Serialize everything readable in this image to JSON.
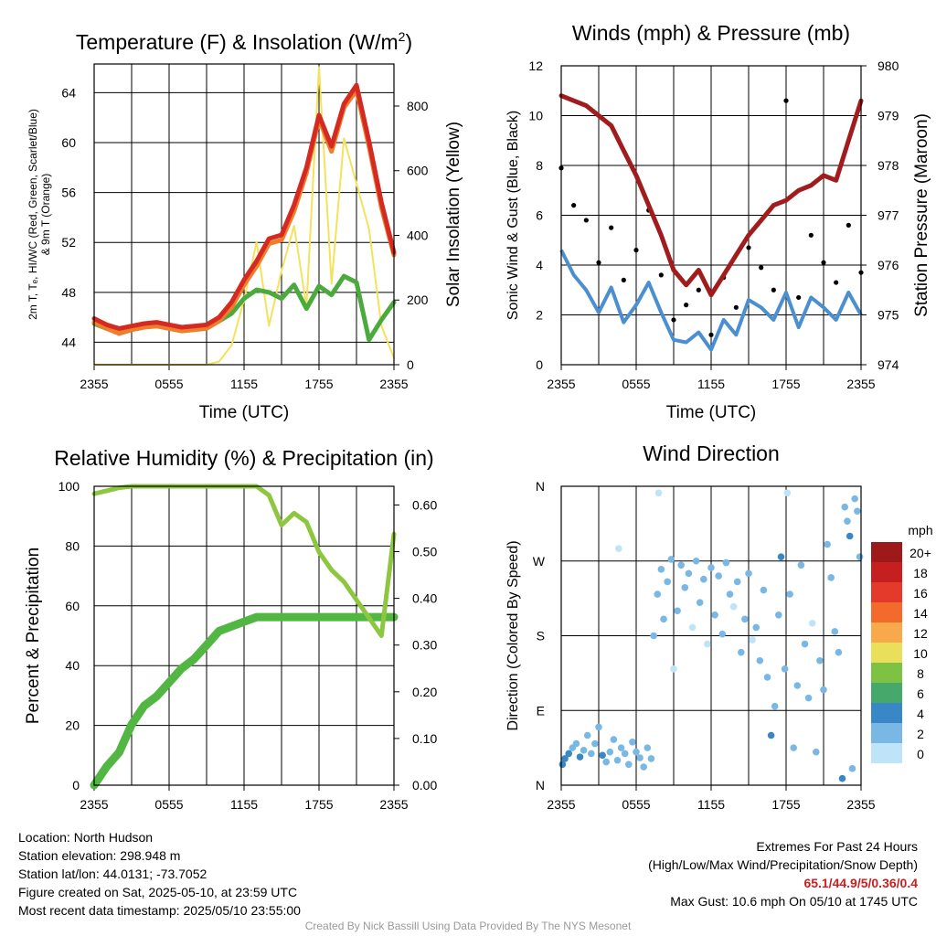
{
  "chart_data": [
    {
      "type": "line",
      "title": "Temperature (F) & Insolation (W/m²)",
      "xlabel": "Time (UTC)",
      "ylabel": "2m T, T_d, HI/WC (Red, Green, Scarlet/Blue) & 9m T (Orange)",
      "ylabel_lines": [
        "2m T, Tₑ, HI/WC (Red, Green, Scarlet/Blue)",
        "& 9m T (Orange)"
      ],
      "y2label": "Solar Insolation (Yellow)",
      "x_ticks": [
        "2355",
        "0555",
        "1155",
        "1755",
        "2355"
      ],
      "y_ticks": [
        "44",
        "48",
        "52",
        "56",
        "60",
        "64"
      ],
      "y2_ticks": [
        "0",
        "200",
        "400",
        "600",
        "800"
      ],
      "ylim": [
        42.2,
        66.3
      ],
      "y2lim": [
        0,
        930
      ],
      "x": [
        0,
        1,
        2,
        3,
        4,
        5,
        6,
        7,
        8,
        9,
        10,
        11,
        12,
        13,
        14,
        15,
        16,
        17,
        18,
        19,
        20,
        21,
        22,
        23,
        24
      ],
      "series": [
        {
          "name": "2m T",
          "color": "#d42a22",
          "axis": "left",
          "values": [
            45.9,
            45.4,
            45.1,
            45.3,
            45.5,
            45.6,
            45.4,
            45.2,
            45.3,
            45.4,
            46.0,
            47.2,
            49.0,
            50.5,
            52.3,
            52.6,
            55.0,
            58.0,
            62.2,
            59.7,
            63.1,
            64.6,
            60.1,
            55.2,
            51.2
          ]
        },
        {
          "name": "9m T",
          "color": "#f07d2b",
          "axis": "left",
          "values": [
            45.6,
            45.1,
            44.7,
            45.0,
            45.2,
            45.3,
            45.1,
            44.9,
            45.0,
            45.1,
            45.7,
            46.8,
            48.6,
            50.1,
            51.9,
            52.2,
            54.5,
            57.6,
            61.9,
            59.3,
            62.8,
            64.2,
            59.7,
            54.8,
            51.0
          ]
        },
        {
          "name": "Dewpoint",
          "color": "#4aab3c",
          "axis": "left",
          "values": [
            45.5,
            45.1,
            44.9,
            45.1,
            45.3,
            45.4,
            45.2,
            45.0,
            45.1,
            45.2,
            45.7,
            46.3,
            47.5,
            48.2,
            48.0,
            47.5,
            48.6,
            46.7,
            48.5,
            47.8,
            49.3,
            48.8,
            44.2,
            45.8,
            47.2
          ]
        },
        {
          "name": "Solar Insolation",
          "color": "#f5e25c",
          "axis": "right",
          "values": [
            0,
            0,
            0,
            0,
            0,
            0,
            0,
            0,
            0,
            0,
            10,
            60,
            200,
            380,
            120,
            290,
            430,
            180,
            920,
            250,
            700,
            560,
            420,
            120,
            20
          ]
        }
      ]
    },
    {
      "type": "line",
      "title": "Winds (mph) & Pressure (mb)",
      "xlabel": "Time (UTC)",
      "ylabel": "Sonic Wind & Gust (Blue, Black)",
      "y2label": "Station Pressure (Maroon)",
      "x_ticks": [
        "2355",
        "0555",
        "1155",
        "1755",
        "2355"
      ],
      "y_ticks": [
        "0",
        "2",
        "4",
        "6",
        "8",
        "10",
        "12"
      ],
      "y2_ticks": [
        "974",
        "975",
        "976",
        "977",
        "978",
        "979",
        "980"
      ],
      "ylim": [
        0,
        12
      ],
      "y2lim": [
        974,
        980
      ],
      "x": [
        0,
        1,
        2,
        3,
        4,
        5,
        6,
        7,
        8,
        9,
        10,
        11,
        12,
        13,
        14,
        15,
        16,
        17,
        18,
        19,
        20,
        21,
        22,
        23,
        24
      ],
      "series": [
        {
          "name": "Sonic Wind",
          "color": "#4a8fd0",
          "axis": "left",
          "values": [
            4.6,
            3.6,
            3.0,
            2.1,
            3.1,
            1.7,
            2.4,
            3.3,
            2.1,
            1.0,
            0.9,
            1.3,
            0.6,
            1.8,
            1.2,
            2.6,
            2.3,
            1.8,
            2.9,
            1.5,
            2.7,
            2.3,
            1.8,
            2.9,
            2.0
          ]
        },
        {
          "name": "Gust",
          "color": "#000000",
          "axis": "left",
          "values": [
            7.9,
            6.4,
            5.8,
            4.1,
            5.5,
            3.4,
            4.6,
            6.2,
            3.6,
            1.8,
            2.4,
            3.0,
            1.2,
            3.5,
            2.3,
            4.7,
            3.9,
            3.0,
            10.6,
            2.7,
            5.2,
            4.1,
            3.3,
            5.6,
            3.7
          ]
        },
        {
          "name": "Station Pressure",
          "color": "#a11d1d",
          "axis": "right",
          "values": [
            979.4,
            979.3,
            979.2,
            979.0,
            978.8,
            978.3,
            977.8,
            977.2,
            976.6,
            975.9,
            975.6,
            975.9,
            975.4,
            975.8,
            976.2,
            976.6,
            976.9,
            977.2,
            977.3,
            977.5,
            977.6,
            977.8,
            977.7,
            978.5,
            979.3
          ]
        }
      ]
    },
    {
      "type": "line",
      "title": "Relative Humidity (%) & Precipitation (in)",
      "xlabel": "",
      "ylabel": "Percent & Precipitation",
      "x_ticks": [
        "2355",
        "0555",
        "1155",
        "1755",
        "2355"
      ],
      "y_ticks": [
        "0",
        "20",
        "40",
        "60",
        "80",
        "100"
      ],
      "y2_ticks": [
        "0.00",
        "0.10",
        "0.20",
        "0.30",
        "0.40",
        "0.50",
        "0.60"
      ],
      "ylim": [
        0,
        100
      ],
      "y2lim": [
        0,
        0.64
      ],
      "x": [
        0,
        1,
        2,
        3,
        4,
        5,
        6,
        7,
        8,
        9,
        10,
        11,
        12,
        13,
        14,
        15,
        16,
        17,
        18,
        19,
        20,
        21,
        22,
        23,
        24
      ],
      "series": [
        {
          "name": "Relative Humidity",
          "color": "#8dc63f",
          "axis": "left",
          "values": [
            97.5,
            98.5,
            99.5,
            100,
            100,
            100,
            100,
            100,
            100,
            100,
            100,
            100,
            100,
            100,
            97,
            87,
            91,
            88,
            78,
            72,
            68,
            62,
            56,
            50,
            84
          ]
        },
        {
          "name": "Precipitation",
          "color": "#52b643",
          "axis": "right",
          "values": [
            0.0,
            0.04,
            0.07,
            0.13,
            0.17,
            0.19,
            0.22,
            0.25,
            0.27,
            0.3,
            0.33,
            0.34,
            0.35,
            0.36,
            0.36,
            0.36,
            0.36,
            0.36,
            0.36,
            0.36,
            0.36,
            0.36,
            0.36,
            0.36,
            0.36
          ]
        }
      ]
    },
    {
      "type": "scatter",
      "title": "Wind Direction",
      "xlabel": "",
      "ylabel": "Direction (Colored By Speed)",
      "x_ticks": [
        "2355",
        "0555",
        "1155",
        "1755",
        "2355"
      ],
      "y_ticks": [
        "N",
        "E",
        "S",
        "W",
        "N"
      ],
      "ylim": [
        0,
        360
      ],
      "xlim": [
        0,
        24
      ],
      "colorbar": {
        "title": "mph",
        "labels": [
          "20+",
          "18",
          "16",
          "14",
          "12",
          "10",
          "8",
          "6",
          "4",
          "2",
          "0"
        ],
        "colors": [
          "#9e1a1a",
          "#c51f1f",
          "#e43a2b",
          "#f26a2c",
          "#f8a94c",
          "#eadf5a",
          "#7dc242",
          "#46a96b",
          "#3a87c7",
          "#79b8e5",
          "#bfe3f7"
        ]
      },
      "points": [
        {
          "x": 0.1,
          "y": 25,
          "speed": 4.1
        },
        {
          "x": 0.3,
          "y": 32,
          "speed": 3.5
        },
        {
          "x": 0.6,
          "y": 38,
          "speed": 3.2
        },
        {
          "x": 0.9,
          "y": 45,
          "speed": 2.8
        },
        {
          "x": 1.2,
          "y": 50,
          "speed": 2.5
        },
        {
          "x": 1.5,
          "y": 34,
          "speed": 3.1
        },
        {
          "x": 1.8,
          "y": 42,
          "speed": 2.9
        },
        {
          "x": 2.1,
          "y": 60,
          "speed": 1.5
        },
        {
          "x": 2.4,
          "y": 38,
          "speed": 2.2
        },
        {
          "x": 2.7,
          "y": 50,
          "speed": 2.6
        },
        {
          "x": 3.0,
          "y": 70,
          "speed": 1.2
        },
        {
          "x": 3.3,
          "y": 36,
          "speed": 3.3
        },
        {
          "x": 3.6,
          "y": 28,
          "speed": 2.4
        },
        {
          "x": 3.9,
          "y": 40,
          "speed": 2.1
        },
        {
          "x": 4.2,
          "y": 55,
          "speed": 1.8
        },
        {
          "x": 4.5,
          "y": 30,
          "speed": 2.9
        },
        {
          "x": 4.8,
          "y": 45,
          "speed": 2.4
        },
        {
          "x": 5.1,
          "y": 38,
          "speed": 1.9
        },
        {
          "x": 5.4,
          "y": 25,
          "speed": 2.7
        },
        {
          "x": 5.7,
          "y": 52,
          "speed": 1.6
        },
        {
          "x": 6.0,
          "y": 40,
          "speed": 2.2
        },
        {
          "x": 6.3,
          "y": 33,
          "speed": 2.5
        },
        {
          "x": 6.6,
          "y": 22,
          "speed": 1.1
        },
        {
          "x": 6.9,
          "y": 45,
          "speed": 2.0
        },
        {
          "x": 7.2,
          "y": 32,
          "speed": 1.7
        },
        {
          "x": 4.6,
          "y": 285,
          "speed": 0.6
        },
        {
          "x": 7.8,
          "y": 352,
          "speed": 0.8
        },
        {
          "x": 7.4,
          "y": 180,
          "speed": 1.3
        },
        {
          "x": 7.7,
          "y": 230,
          "speed": 1.9
        },
        {
          "x": 8.0,
          "y": 260,
          "speed": 1.0
        },
        {
          "x": 8.2,
          "y": 200,
          "speed": 2.1
        },
        {
          "x": 8.5,
          "y": 245,
          "speed": 1.6
        },
        {
          "x": 8.8,
          "y": 272,
          "speed": 2.3
        },
        {
          "x": 9.0,
          "y": 140,
          "speed": 0.9
        },
        {
          "x": 9.3,
          "y": 210,
          "speed": 1.5
        },
        {
          "x": 9.6,
          "y": 265,
          "speed": 2.0
        },
        {
          "x": 9.9,
          "y": 238,
          "speed": 2.6
        },
        {
          "x": 10.2,
          "y": 255,
          "speed": 1.3
        },
        {
          "x": 10.5,
          "y": 190,
          "speed": 0.7
        },
        {
          "x": 10.8,
          "y": 270,
          "speed": 1.8
        },
        {
          "x": 11.1,
          "y": 220,
          "speed": 2.4
        },
        {
          "x": 11.4,
          "y": 248,
          "speed": 1.1
        },
        {
          "x": 11.7,
          "y": 170,
          "speed": 0.8
        },
        {
          "x": 12.0,
          "y": 262,
          "speed": 2.2
        },
        {
          "x": 12.3,
          "y": 205,
          "speed": 1.4
        },
        {
          "x": 12.6,
          "y": 252,
          "speed": 2.7
        },
        {
          "x": 12.9,
          "y": 182,
          "speed": 1.0
        },
        {
          "x": 13.2,
          "y": 268,
          "speed": 1.9
        },
        {
          "x": 13.5,
          "y": 230,
          "speed": 2.1
        },
        {
          "x": 13.8,
          "y": 215,
          "speed": 0.9
        },
        {
          "x": 14.1,
          "y": 245,
          "speed": 1.6
        },
        {
          "x": 14.4,
          "y": 160,
          "speed": 1.2
        },
        {
          "x": 14.7,
          "y": 200,
          "speed": 2.3
        },
        {
          "x": 15.0,
          "y": 255,
          "speed": 1.4
        },
        {
          "x": 15.3,
          "y": 175,
          "speed": 0.8
        },
        {
          "x": 15.6,
          "y": 190,
          "speed": 1.7
        },
        {
          "x": 15.9,
          "y": 150,
          "speed": 2.0
        },
        {
          "x": 16.2,
          "y": 235,
          "speed": 1.1
        },
        {
          "x": 16.5,
          "y": 130,
          "speed": 2.5
        },
        {
          "x": 16.8,
          "y": 60,
          "speed": 3.2
        },
        {
          "x": 17.1,
          "y": 95,
          "speed": 1.3
        },
        {
          "x": 17.4,
          "y": 205,
          "speed": 2.2
        },
        {
          "x": 17.6,
          "y": 275,
          "speed": 3.6
        },
        {
          "x": 17.9,
          "y": 140,
          "speed": 1.0
        },
        {
          "x": 18.1,
          "y": 352,
          "speed": 0.5
        },
        {
          "x": 18.3,
          "y": 230,
          "speed": 2.0
        },
        {
          "x": 18.6,
          "y": 45,
          "speed": 2.8
        },
        {
          "x": 18.9,
          "y": 120,
          "speed": 1.9
        },
        {
          "x": 19.2,
          "y": 265,
          "speed": 1.4
        },
        {
          "x": 19.5,
          "y": 170,
          "speed": 2.4
        },
        {
          "x": 19.8,
          "y": 105,
          "speed": 2.1
        },
        {
          "x": 20.1,
          "y": 195,
          "speed": 0.9
        },
        {
          "x": 20.4,
          "y": 40,
          "speed": 2.9
        },
        {
          "x": 20.7,
          "y": 150,
          "speed": 1.7
        },
        {
          "x": 21.0,
          "y": 115,
          "speed": 2.3
        },
        {
          "x": 21.3,
          "y": 290,
          "speed": 1.2
        },
        {
          "x": 21.6,
          "y": 250,
          "speed": 2.6
        },
        {
          "x": 21.9,
          "y": 185,
          "speed": 1.5
        },
        {
          "x": 22.2,
          "y": 160,
          "speed": 2.0
        },
        {
          "x": 22.5,
          "y": 8,
          "speed": 3.8
        },
        {
          "x": 22.7,
          "y": 335,
          "speed": 2.1
        },
        {
          "x": 22.9,
          "y": 318,
          "speed": 2.7
        },
        {
          "x": 23.1,
          "y": 300,
          "speed": 3.4
        },
        {
          "x": 23.3,
          "y": 20,
          "speed": 2.2
        },
        {
          "x": 23.5,
          "y": 345,
          "speed": 2.9
        },
        {
          "x": 23.7,
          "y": 330,
          "speed": 1.6
        },
        {
          "x": 23.9,
          "y": 275,
          "speed": 2.4
        }
      ]
    }
  ],
  "info": {
    "location": "Location: North Hudson",
    "elevation": "Station elevation: 298.948 m",
    "latlon": "Station lat/lon: 44.0131; -73.7052",
    "created": "Figure created on Sat, 2025-05-10, at 23:59 UTC",
    "recent": "Most recent data timestamp: 2025/05/10 23:55:00"
  },
  "extremes": {
    "title": "Extremes For Past 24 Hours",
    "legend": "(High/Low/Max Wind/Precipitation/Snow Depth)",
    "values": "65.1/44.9/5/0.36/0.4",
    "gust": "Max Gust: 10.6 mph On 05/10 at 1745 UTC"
  },
  "credit": "Created By Nick Bassill Using Data Provided By The NYS Mesonet"
}
